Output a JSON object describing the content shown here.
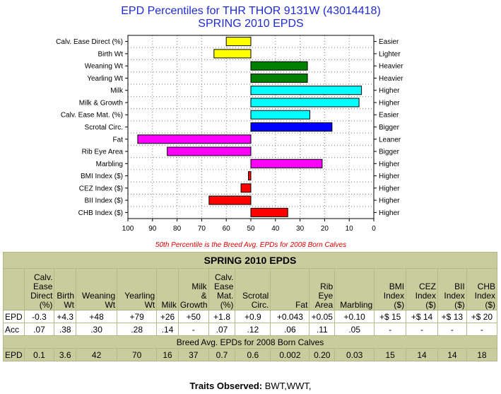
{
  "chart_data": {
    "type": "bar",
    "title": "EPD Percentiles for THR THOR 9131W (43014418)",
    "subtitle": "SPRING 2010 EPDS",
    "categories": [
      "Calv. Ease Direct (%)",
      "Birth Wt",
      "Weaning Wt",
      "Yearling Wt",
      "Milk",
      "Milk & Growth",
      "Calv. Ease Mat. (%)",
      "Scrotal Circ.",
      "Fat",
      "Rib Eye Area",
      "Marbling",
      "BMI Index ($)",
      "CEZ Index ($)",
      "BII Index ($)",
      "CHB Index ($)"
    ],
    "values": [
      60,
      65,
      27,
      27,
      5,
      6,
      26,
      17,
      96,
      84,
      21,
      51,
      54,
      67,
      35
    ],
    "baseline": 50,
    "colors": [
      "#ffff00",
      "#ffff00",
      "#008000",
      "#008000",
      "#00ffff",
      "#00ffff",
      "#00ffff",
      "#0000ff",
      "#ff00ff",
      "#ff00ff",
      "#ff00ff",
      "#ff0000",
      "#ff0000",
      "#ff0000",
      "#ff0000"
    ],
    "right_labels": [
      "Easier",
      "Lighter",
      "Heavier",
      "Heavier",
      "Higher",
      "Higher",
      "Easier",
      "Bigger",
      "Leaner",
      "Bigger",
      "Higher",
      "Higher",
      "Higher",
      "Higher",
      "Higher"
    ],
    "xlim": [
      100,
      0
    ],
    "xticks": [
      "100",
      "90",
      "80",
      "70",
      "60",
      "50",
      "40",
      "30",
      "20",
      "10",
      "0"
    ],
    "grid": true,
    "note": "50th Percentile is the Breed Avg. EPDs for 2008 Born Calves"
  },
  "table": {
    "title": "SPRING 2010 EPDS",
    "headers": [
      "",
      "Calv.\nEase\nDirect\n(%)",
      "Birth\nWt",
      "Weaning\nWt",
      "Yearling\nWt",
      "Milk",
      "Milk\n&\nGrowth",
      "Calv.\nEase\nMat.\n(%)",
      "Scrotal\nCirc.",
      "Fat",
      "Rib\nEye\nArea",
      "Marbling",
      "BMI\nIndex\n($)",
      "CEZ\nIndex\n($)",
      "BII\nIndex\n($)",
      "CHB\nIndex\n($)"
    ],
    "epd_row": [
      "EPD",
      "-0.3",
      "+4.3",
      "+48",
      "+79",
      "+26",
      "+50",
      "+1.8",
      "+0.9",
      "+0.043",
      "+0.05",
      "+0.10",
      "+$ 15",
      "+$ 14",
      "+$ 13",
      "+$ 20"
    ],
    "acc_row": [
      "Acc",
      ".07",
      ".38",
      ".30",
      ".28",
      ".14",
      "-",
      ".07",
      ".12",
      ".06",
      ".11",
      ".05",
      "-",
      "-",
      "-",
      "-"
    ],
    "breed_title": "Breed Avg. EPDs for 2008 Born Calves",
    "breed_row": [
      "EPD",
      "0.1",
      "3.6",
      "42",
      "70",
      "16",
      "37",
      "0.7",
      "0.6",
      "0.002",
      "0.20",
      "0.03",
      "15",
      "14",
      "14",
      "18"
    ]
  },
  "traits": {
    "label": "Traits Observed:",
    "value": " BWT,WWT,"
  }
}
